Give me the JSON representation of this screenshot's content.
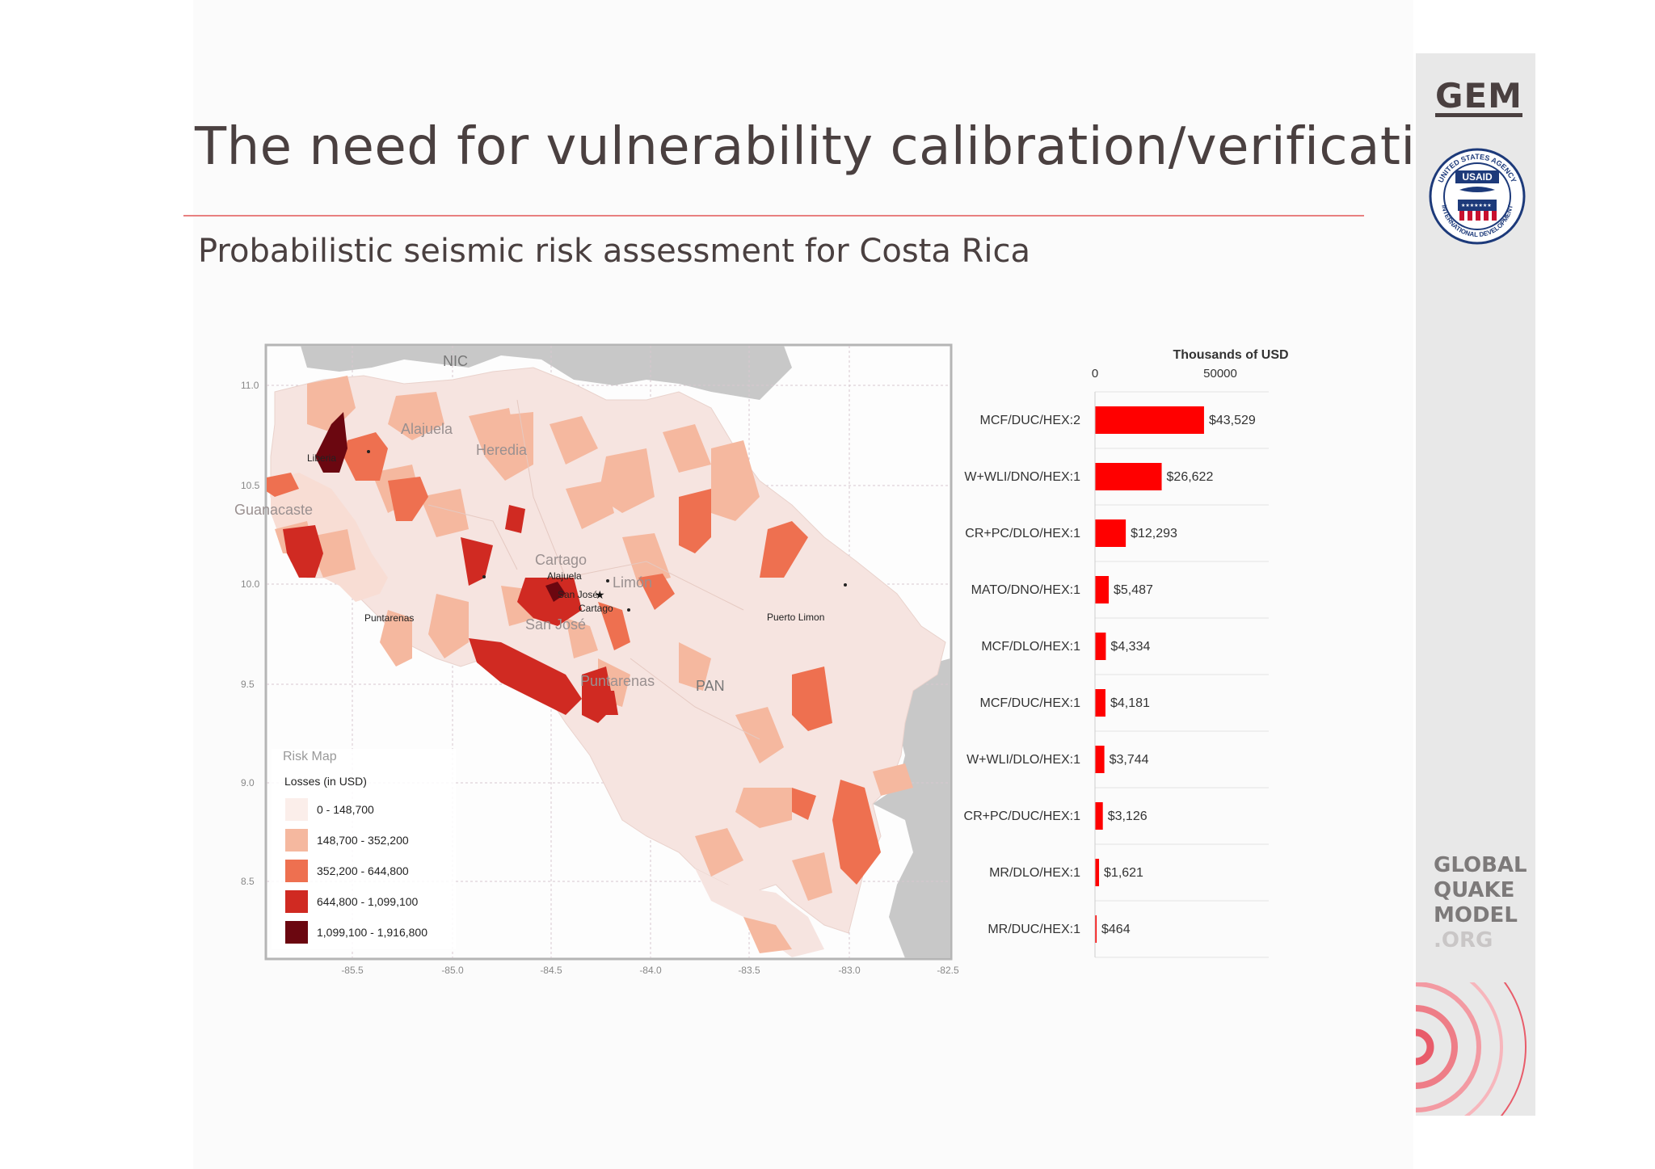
{
  "slide": {
    "title": "The need for vulnerability calibration/verification",
    "subtitle": "Probabilistic seismic risk assessment for Costa Rica"
  },
  "branding": {
    "gem": "GEM",
    "usaid_seal": "USAID",
    "usaid_ring_text": "UNITED STATES AGENCY INTERNATIONAL DEVELOPMENT",
    "gqm": [
      "GLOBAL",
      "QUAKE",
      "MODEL",
      ".ORG"
    ]
  },
  "map": {
    "countries": {
      "north": "NIC",
      "south": "PAN"
    },
    "provinces": [
      "Alajuela",
      "Heredia",
      "Guanacaste",
      "Cartago",
      "Limón",
      "San José",
      "Puntarenas"
    ],
    "cities": [
      "Liberia",
      "Puntarenas",
      "Alajuela",
      "San José",
      "Cartago",
      "Puerto Limon"
    ],
    "lat_ticks": [
      "11.0",
      "10.5",
      "10.0",
      "9.5",
      "9.0",
      "8.5"
    ],
    "lon_ticks": [
      "-85.5",
      "-85.0",
      "-84.5",
      "-84.0",
      "-83.5",
      "-83.0",
      "-82.5"
    ],
    "legend": {
      "title": "Risk Map",
      "subtitle": "Losses (in USD)",
      "classes": [
        {
          "label": "0 - 148,700",
          "color": "#fbeeea"
        },
        {
          "label": "148,700 - 352,200",
          "color": "#f5b89f"
        },
        {
          "label": "352,200 - 644,800",
          "color": "#ee7050"
        },
        {
          "label": "644,800 - 1,099,100",
          "color": "#d02a22"
        },
        {
          "label": "1,099,100 - 1,916,800",
          "color": "#6b0710"
        }
      ]
    }
  },
  "chart_data": {
    "type": "bar",
    "orientation": "horizontal",
    "title": "Thousands of USD",
    "xlim": [
      0,
      50000
    ],
    "x_ticks": [
      "0",
      "50000"
    ],
    "bar_color": "#ff0000",
    "categories": [
      "MCF/DUC/HEX:2",
      "W+WLI/DNO/HEX:1",
      "CR+PC/DLO/HEX:1",
      "MATO/DNO/HEX:1",
      "MCF/DLO/HEX:1",
      "MCF/DUC/HEX:1",
      "W+WLI/DLO/HEX:1",
      "CR+PC/DUC/HEX:1",
      "MR/DLO/HEX:1",
      "MR/DUC/HEX:1"
    ],
    "values": [
      43529,
      26622,
      12293,
      5487,
      4334,
      4181,
      3744,
      3126,
      1621,
      464
    ],
    "value_labels": [
      "$43,529",
      "$26,622",
      "$12,293",
      "$5,487",
      "$4,334",
      "$4,181",
      "$3,744",
      "$3,126",
      "$1,621",
      "$464"
    ]
  }
}
